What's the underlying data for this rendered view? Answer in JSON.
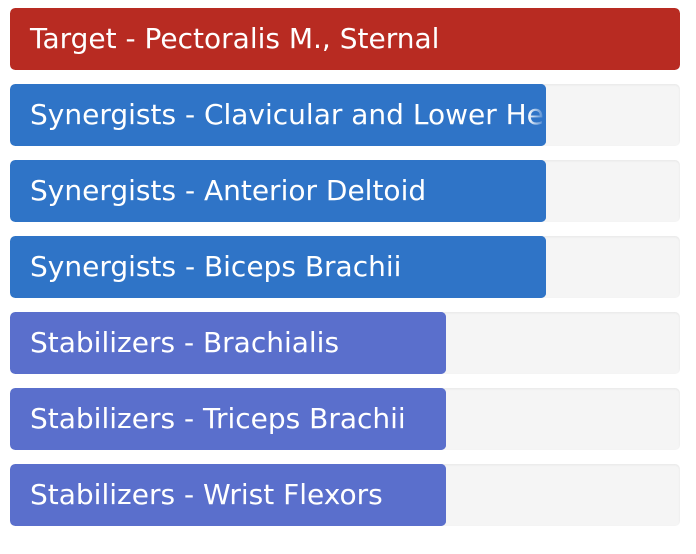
{
  "muscles": [
    {
      "role": "Target",
      "label": "Target - Pectoralis M., Sternal",
      "fill_fraction": 1.0,
      "color": "#b82b22"
    },
    {
      "role": "Synergists",
      "label": "Synergists - Clavicular and Lower Head",
      "fill_fraction": 0.8,
      "color": "#2f74c7"
    },
    {
      "role": "Synergists",
      "label": "Synergists - Anterior Deltoid",
      "fill_fraction": 0.8,
      "color": "#2f74c7"
    },
    {
      "role": "Synergists",
      "label": "Synergists - Biceps Brachii",
      "fill_fraction": 0.8,
      "color": "#2f74c7"
    },
    {
      "role": "Stabilizers",
      "label": "Stabilizers - Brachialis",
      "fill_fraction": 0.65,
      "color": "#5a6fcc"
    },
    {
      "role": "Stabilizers",
      "label": "Stabilizers - Triceps Brachii",
      "fill_fraction": 0.65,
      "color": "#5a6fcc"
    },
    {
      "role": "Stabilizers",
      "label": "Stabilizers - Wrist Flexors",
      "fill_fraction": 0.65,
      "color": "#5a6fcc"
    }
  ],
  "track_color": "#f5f5f5",
  "label_color": "#ffffff"
}
